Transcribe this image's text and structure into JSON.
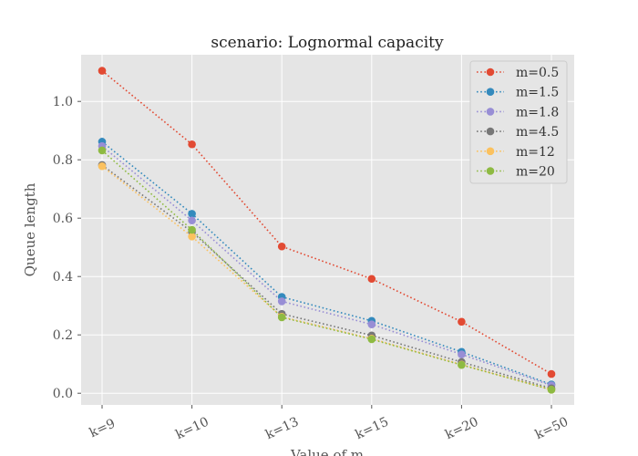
{
  "chart_data": {
    "type": "line",
    "title": "scenario: Lognormal capacity",
    "xlabel": "Value of m",
    "ylabel": "Queue length",
    "categories": [
      "k=9",
      "k=10",
      "k=13",
      "k=15",
      "k=20",
      "k=50"
    ],
    "ylim": [
      -0.04,
      1.16
    ],
    "yticks": [
      0.0,
      0.2,
      0.4,
      0.6,
      0.8,
      1.0
    ],
    "yticklabels": [
      "0.0",
      "0.2",
      "0.4",
      "0.6",
      "0.8",
      "1.0"
    ],
    "grid": true,
    "legend_position": "top-right",
    "line_style": "dotted",
    "series": [
      {
        "name": "m=0.5",
        "color": "#E24A33",
        "values": [
          1.105,
          0.853,
          0.503,
          0.392,
          0.245,
          0.066
        ]
      },
      {
        "name": "m=1.5",
        "color": "#348ABD",
        "values": [
          0.862,
          0.615,
          0.33,
          0.248,
          0.142,
          0.03
        ]
      },
      {
        "name": "m=1.8",
        "color": "#988ED5",
        "values": [
          0.847,
          0.592,
          0.315,
          0.236,
          0.133,
          0.027
        ]
      },
      {
        "name": "m=4.5",
        "color": "#777777",
        "values": [
          0.782,
          0.553,
          0.272,
          0.198,
          0.107,
          0.017
        ]
      },
      {
        "name": "m=12",
        "color": "#FBC15E",
        "values": [
          0.778,
          0.537,
          0.262,
          0.187,
          0.098,
          0.012
        ]
      },
      {
        "name": "m=20",
        "color": "#8EBA42",
        "values": [
          0.832,
          0.56,
          0.26,
          0.185,
          0.097,
          0.012
        ]
      }
    ]
  }
}
